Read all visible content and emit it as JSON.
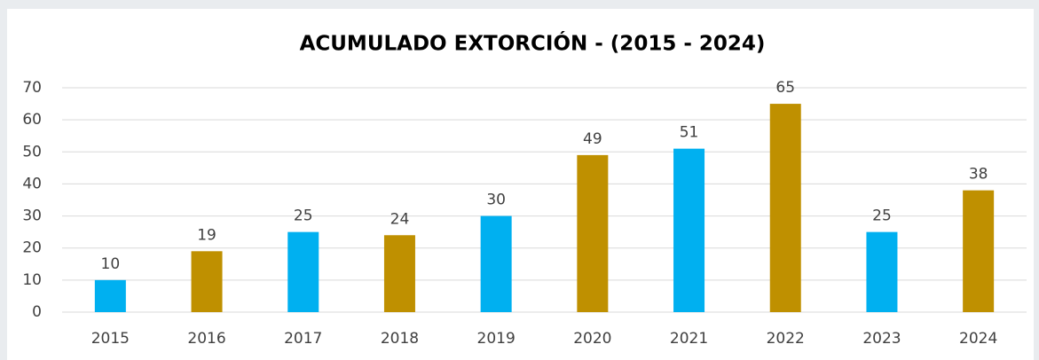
{
  "chart_data": {
    "type": "bar",
    "title": "ACUMULADO EXTORCIÓN - (2015 - 2024)",
    "categories": [
      "2015",
      "2016",
      "2017",
      "2018",
      "2019",
      "2020",
      "2021",
      "2022",
      "2023",
      "2024"
    ],
    "values": [
      10,
      19,
      25,
      24,
      30,
      49,
      51,
      65,
      25,
      38
    ],
    "colors": [
      "#00b0f0",
      "#bf9000",
      "#00b0f0",
      "#bf9000",
      "#00b0f0",
      "#bf9000",
      "#00b0f0",
      "#bf9000",
      "#00b0f0",
      "#bf9000"
    ],
    "ylim": [
      0,
      70
    ],
    "yticks": [
      0,
      10,
      20,
      30,
      40,
      50,
      60,
      70
    ],
    "grid": true,
    "data_labels": true
  }
}
